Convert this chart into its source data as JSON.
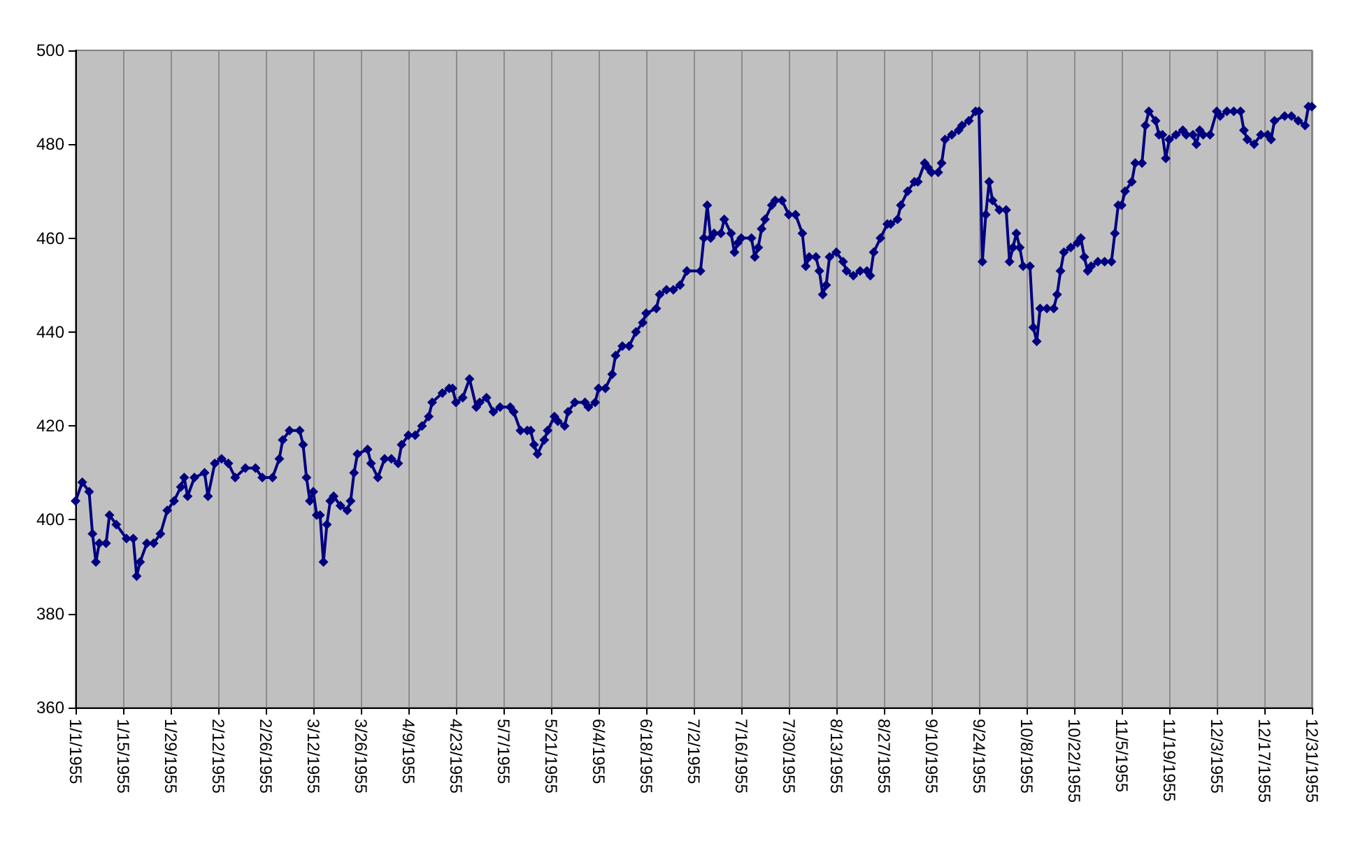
{
  "chart_data": {
    "type": "line",
    "marker": "diamond",
    "grid": "x",
    "xlim": [
      "1955-01-01",
      "1955-12-31"
    ],
    "xticks": [
      {
        "value": "1955-01-01",
        "label": "1/1/1955"
      },
      {
        "value": "1955-01-15",
        "label": "1/15/1955"
      },
      {
        "value": "1955-01-29",
        "label": "1/29/1955"
      },
      {
        "value": "1955-02-12",
        "label": "2/12/1955"
      },
      {
        "value": "1955-02-26",
        "label": "2/26/1955"
      },
      {
        "value": "1955-03-12",
        "label": "3/12/1955"
      },
      {
        "value": "1955-03-26",
        "label": "3/26/1955"
      },
      {
        "value": "1955-04-09",
        "label": "4/9/1955"
      },
      {
        "value": "1955-04-23",
        "label": "4/23/1955"
      },
      {
        "value": "1955-05-07",
        "label": "5/7/1955"
      },
      {
        "value": "1955-05-21",
        "label": "5/21/1955"
      },
      {
        "value": "1955-06-04",
        "label": "6/4/1955"
      },
      {
        "value": "1955-06-18",
        "label": "6/18/1955"
      },
      {
        "value": "1955-07-02",
        "label": "7/2/1955"
      },
      {
        "value": "1955-07-16",
        "label": "7/16/1955"
      },
      {
        "value": "1955-07-30",
        "label": "7/30/1955"
      },
      {
        "value": "1955-08-13",
        "label": "8/13/1955"
      },
      {
        "value": "1955-08-27",
        "label": "8/27/1955"
      },
      {
        "value": "1955-09-10",
        "label": "9/10/1955"
      },
      {
        "value": "1955-09-24",
        "label": "9/24/1955"
      },
      {
        "value": "1955-10-08",
        "label": "10/8/1955"
      },
      {
        "value": "1955-10-22",
        "label": "10/22/1955"
      },
      {
        "value": "1955-11-05",
        "label": "11/5/1955"
      },
      {
        "value": "1955-11-19",
        "label": "11/19/1955"
      },
      {
        "value": "1955-12-03",
        "label": "12/3/1955"
      },
      {
        "value": "1955-12-17",
        "label": "12/17/1955"
      },
      {
        "value": "1955-12-31",
        "label": "12/31/1955"
      }
    ],
    "ylim": [
      360,
      500
    ],
    "yticks": [
      360,
      380,
      400,
      420,
      440,
      460,
      480,
      500
    ],
    "series": [
      {
        "color": "#000080",
        "x": [
          "1955-01-01",
          "1955-01-03",
          "1955-01-05",
          "1955-01-06",
          "1955-01-07",
          "1955-01-08",
          "1955-01-10",
          "1955-01-11",
          "1955-01-13",
          "1955-01-16",
          "1955-01-18",
          "1955-01-19",
          "1955-01-20",
          "1955-01-22",
          "1955-01-24",
          "1955-01-26",
          "1955-01-28",
          "1955-01-30",
          "1955-02-01",
          "1955-02-02",
          "1955-02-03",
          "1955-02-05",
          "1955-02-08",
          "1955-02-09",
          "1955-02-11",
          "1955-02-13",
          "1955-02-15",
          "1955-02-17",
          "1955-02-20",
          "1955-02-23",
          "1955-02-25",
          "1955-02-28",
          "1955-03-02",
          "1955-03-03",
          "1955-03-05",
          "1955-03-08",
          "1955-03-09",
          "1955-03-10",
          "1955-03-11",
          "1955-03-12",
          "1955-03-13",
          "1955-03-14",
          "1955-03-15",
          "1955-03-16",
          "1955-03-17",
          "1955-03-18",
          "1955-03-20",
          "1955-03-22",
          "1955-03-23",
          "1955-03-24",
          "1955-03-25",
          "1955-03-28",
          "1955-03-29",
          "1955-03-31",
          "1955-04-02",
          "1955-04-04",
          "1955-04-06",
          "1955-04-07",
          "1955-04-09",
          "1955-04-11",
          "1955-04-13",
          "1955-04-15",
          "1955-04-16",
          "1955-04-19",
          "1955-04-21",
          "1955-04-22",
          "1955-04-23",
          "1955-04-25",
          "1955-04-27",
          "1955-04-29",
          "1955-04-30",
          "1955-05-02",
          "1955-05-04",
          "1955-05-06",
          "1955-05-09",
          "1955-05-10",
          "1955-05-12",
          "1955-05-14",
          "1955-05-15",
          "1955-05-16",
          "1955-05-17",
          "1955-05-19",
          "1955-05-20",
          "1955-05-22",
          "1955-05-23",
          "1955-05-25",
          "1955-05-26",
          "1955-05-28",
          "1955-05-31",
          "1955-06-01",
          "1955-06-03",
          "1955-06-04",
          "1955-06-06",
          "1955-06-08",
          "1955-06-09",
          "1955-06-11",
          "1955-06-13",
          "1955-06-15",
          "1955-06-17",
          "1955-06-18",
          "1955-06-21",
          "1955-06-22",
          "1955-06-24",
          "1955-06-26",
          "1955-06-28",
          "1955-06-30",
          "1955-07-04",
          "1955-07-05",
          "1955-07-06",
          "1955-07-07",
          "1955-07-08",
          "1955-07-10",
          "1955-07-11",
          "1955-07-13",
          "1955-07-14",
          "1955-07-15",
          "1955-07-16",
          "1955-07-19",
          "1955-07-20",
          "1955-07-21",
          "1955-07-22",
          "1955-07-23",
          "1955-07-25",
          "1955-07-26",
          "1955-07-28",
          "1955-07-30",
          "1955-08-01",
          "1955-08-03",
          "1955-08-04",
          "1955-08-05",
          "1955-08-07",
          "1955-08-08",
          "1955-08-09",
          "1955-08-10",
          "1955-08-11",
          "1955-08-13",
          "1955-08-15",
          "1955-08-16",
          "1955-08-18",
          "1955-08-20",
          "1955-08-22",
          "1955-08-23",
          "1955-08-24",
          "1955-08-26",
          "1955-08-28",
          "1955-08-29",
          "1955-08-31",
          "1955-09-01",
          "1955-09-03",
          "1955-09-05",
          "1955-09-06",
          "1955-09-08",
          "1955-09-09",
          "1955-09-10",
          "1955-09-12",
          "1955-09-13",
          "1955-09-14",
          "1955-09-16",
          "1955-09-18",
          "1955-09-19",
          "1955-09-21",
          "1955-09-23",
          "1955-09-24",
          "1955-09-25",
          "1955-09-26",
          "1955-09-27",
          "1955-09-28",
          "1955-09-30",
          "1955-10-02",
          "1955-10-03",
          "1955-10-04",
          "1955-10-05",
          "1955-10-06",
          "1955-10-07",
          "1955-10-09",
          "1955-10-10",
          "1955-10-11",
          "1955-10-12",
          "1955-10-14",
          "1955-10-16",
          "1955-10-17",
          "1955-10-18",
          "1955-10-19",
          "1955-10-21",
          "1955-10-23",
          "1955-10-24",
          "1955-10-25",
          "1955-10-26",
          "1955-10-27",
          "1955-10-29",
          "1955-10-31",
          "1955-11-02",
          "1955-11-03",
          "1955-11-04",
          "1955-11-05",
          "1955-11-06",
          "1955-11-08",
          "1955-11-09",
          "1955-11-11",
          "1955-11-12",
          "1955-11-13",
          "1955-11-15",
          "1955-11-16",
          "1955-11-17",
          "1955-11-18",
          "1955-11-19",
          "1955-11-21",
          "1955-11-23",
          "1955-11-24",
          "1955-11-26",
          "1955-11-27",
          "1955-11-28",
          "1955-11-29",
          "1955-12-01",
          "1955-12-03",
          "1955-12-04",
          "1955-12-06",
          "1955-12-08",
          "1955-12-10",
          "1955-12-11",
          "1955-12-12",
          "1955-12-14",
          "1955-12-16",
          "1955-12-18",
          "1955-12-19",
          "1955-12-20",
          "1955-12-23",
          "1955-12-25",
          "1955-12-27",
          "1955-12-29",
          "1955-12-30",
          "1955-12-31"
        ],
        "values": [
          404,
          408,
          406,
          397,
          391,
          395,
          395,
          401,
          399,
          396,
          396,
          388,
          391,
          395,
          395,
          397,
          402,
          404,
          407,
          409,
          405,
          409,
          410,
          405,
          412,
          413,
          412,
          409,
          411,
          411,
          409,
          409,
          413,
          417,
          419,
          419,
          416,
          409,
          404,
          406,
          401,
          401,
          391,
          399,
          404,
          405,
          403,
          402,
          404,
          410,
          414,
          415,
          412,
          409,
          413,
          413,
          412,
          416,
          418,
          418,
          420,
          422,
          425,
          427,
          428,
          428,
          425,
          426,
          430,
          424,
          425,
          426,
          423,
          424,
          424,
          423,
          419,
          419,
          419,
          416,
          414,
          417,
          419,
          422,
          421,
          420,
          423,
          425,
          425,
          424,
          425,
          428,
          428,
          431,
          435,
          437,
          437,
          440,
          442,
          444,
          445,
          448,
          449,
          449,
          450,
          453,
          453,
          460,
          467,
          460,
          461,
          461,
          464,
          461,
          457,
          459,
          460,
          460,
          456,
          458,
          462,
          464,
          467,
          468,
          468,
          465,
          465,
          461,
          454,
          456,
          456,
          453,
          448,
          450,
          456,
          457,
          455,
          453,
          452,
          453,
          453,
          452,
          457,
          460,
          463,
          463,
          464,
          467,
          470,
          472,
          472,
          476,
          475,
          474,
          474,
          476,
          481,
          482,
          483,
          484,
          485,
          487,
          487,
          455,
          465,
          472,
          468,
          466,
          466,
          455,
          458,
          461,
          458,
          454,
          454,
          441,
          438,
          445,
          445,
          445,
          448,
          453,
          457,
          458,
          459,
          460,
          456,
          453,
          454,
          455,
          455,
          455,
          461,
          467,
          467,
          470,
          472,
          476,
          476,
          484,
          487,
          485,
          482,
          482,
          477,
          481,
          482,
          483,
          482,
          482,
          480,
          483,
          482,
          482,
          487,
          486,
          487,
          487,
          487,
          483,
          481,
          480,
          482,
          482,
          481,
          485,
          486,
          486,
          485,
          484,
          488,
          488
        ]
      }
    ]
  }
}
